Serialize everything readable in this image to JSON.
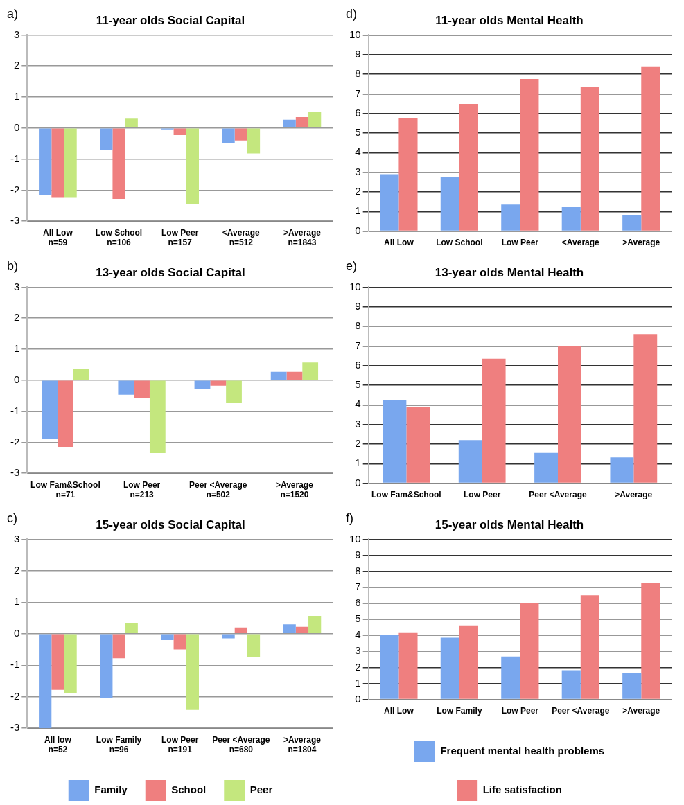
{
  "chart_data": [
    {
      "type": "bar",
      "title": "11-year olds Social Capital",
      "annotations": [
        "a)"
      ],
      "categories": [
        "All Low\nn=59",
        "Low School\nn=106",
        "Low Peer\nn=157",
        "<Average\nn=512",
        ">Average\nn=1843"
      ],
      "ylim": [
        -3,
        3
      ],
      "yticks": [
        -3,
        -2,
        -1,
        0,
        1,
        2,
        3
      ],
      "grid": "y",
      "legend": false,
      "series": [
        {
          "color": "#79a7ee",
          "values": [
            -2.15,
            -0.72,
            -0.02,
            -0.48,
            0.27
          ]
        },
        {
          "color": "#ef7f7f",
          "values": [
            -2.25,
            -2.28,
            -0.23,
            -0.4,
            0.35
          ]
        },
        {
          "color": "#c4e77e",
          "values": [
            -2.25,
            0.3,
            -2.45,
            -0.82,
            0.52
          ]
        }
      ]
    },
    {
      "type": "bar",
      "title": "11-year olds Mental Health",
      "annotations": [
        "d)"
      ],
      "categories": [
        "All Low",
        "Low School",
        "Low Peer",
        "<Average",
        ">Average"
      ],
      "ylim": [
        0,
        10
      ],
      "yticks": [
        0,
        1,
        2,
        3,
        4,
        5,
        6,
        7,
        8,
        9,
        10
      ],
      "grid": "y",
      "legend": false,
      "series": [
        {
          "color": "#79a7ee",
          "values": [
            2.9,
            2.75,
            1.35,
            1.22,
            0.83
          ]
        },
        {
          "color": "#ef7f7f",
          "values": [
            5.78,
            6.48,
            7.75,
            7.37,
            8.4
          ]
        }
      ]
    },
    {
      "type": "bar",
      "title": "13-year olds Social Capital",
      "annotations": [
        "b)"
      ],
      "categories": [
        "Low Fam&School\nn=71",
        "Low Peer\nn=213",
        "Peer <Average\nn=502",
        ">Average\nn=1520"
      ],
      "ylim": [
        -3,
        3
      ],
      "yticks": [
        -3,
        -2,
        -1,
        0,
        1,
        2,
        3
      ],
      "grid": "y",
      "legend": false,
      "series": [
        {
          "color": "#79a7ee",
          "values": [
            -1.9,
            -0.47,
            -0.27,
            0.27
          ]
        },
        {
          "color": "#ef7f7f",
          "values": [
            -2.15,
            -0.58,
            -0.18,
            0.27
          ]
        },
        {
          "color": "#c4e77e",
          "values": [
            0.35,
            -2.35,
            -0.72,
            0.57
          ]
        }
      ]
    },
    {
      "type": "bar",
      "title": "13-year olds Mental Health",
      "annotations": [
        "e)"
      ],
      "categories": [
        "Low Fam&School",
        "Low Peer",
        "Peer <Average",
        ">Average"
      ],
      "ylim": [
        0,
        10
      ],
      "yticks": [
        0,
        1,
        2,
        3,
        4,
        5,
        6,
        7,
        8,
        9,
        10
      ],
      "grid": "y",
      "legend": false,
      "series": [
        {
          "color": "#79a7ee",
          "values": [
            4.25,
            2.2,
            1.55,
            1.32
          ]
        },
        {
          "color": "#ef7f7f",
          "values": [
            3.9,
            6.35,
            7.0,
            7.6
          ]
        }
      ]
    },
    {
      "type": "bar",
      "title": "15-year olds Social Capital",
      "annotations": [
        "c)"
      ],
      "categories": [
        "All low\nn=52",
        "Low Family\nn=96",
        "Low Peer\nn=191",
        "Peer <Average\nn=680",
        ">Average\nn=1804"
      ],
      "ylim": [
        -3,
        3
      ],
      "yticks": [
        -3,
        -2,
        -1,
        0,
        1,
        2,
        3
      ],
      "grid": "y",
      "legend": "bottom",
      "series": [
        {
          "name": "Family",
          "color": "#79a7ee",
          "values": [
            -3.0,
            -2.05,
            -0.2,
            -0.15,
            0.3
          ]
        },
        {
          "name": "School",
          "color": "#ef7f7f",
          "values": [
            -1.78,
            -0.78,
            -0.5,
            0.2,
            0.22
          ]
        },
        {
          "name": "Peer",
          "color": "#c4e77e",
          "values": [
            -1.88,
            0.35,
            -2.42,
            -0.75,
            0.57
          ]
        }
      ]
    },
    {
      "type": "bar",
      "title": "15-year olds Mental Health",
      "annotations": [
        "f)"
      ],
      "categories": [
        "All Low",
        "Low Family",
        "Low Peer",
        "Peer <Average",
        ">Average"
      ],
      "ylim": [
        0,
        10
      ],
      "yticks": [
        0,
        1,
        2,
        3,
        4,
        5,
        6,
        7,
        8,
        9,
        10
      ],
      "grid": "y",
      "legend": "bottom",
      "series": [
        {
          "name": "Frequent mental health problems",
          "color": "#79a7ee",
          "values": [
            4.05,
            3.85,
            2.68,
            1.82,
            1.63
          ]
        },
        {
          "name": "Life satisfaction",
          "color": "#ef7f7f",
          "values": [
            4.15,
            4.62,
            6.02,
            6.5,
            7.25
          ]
        }
      ]
    }
  ]
}
